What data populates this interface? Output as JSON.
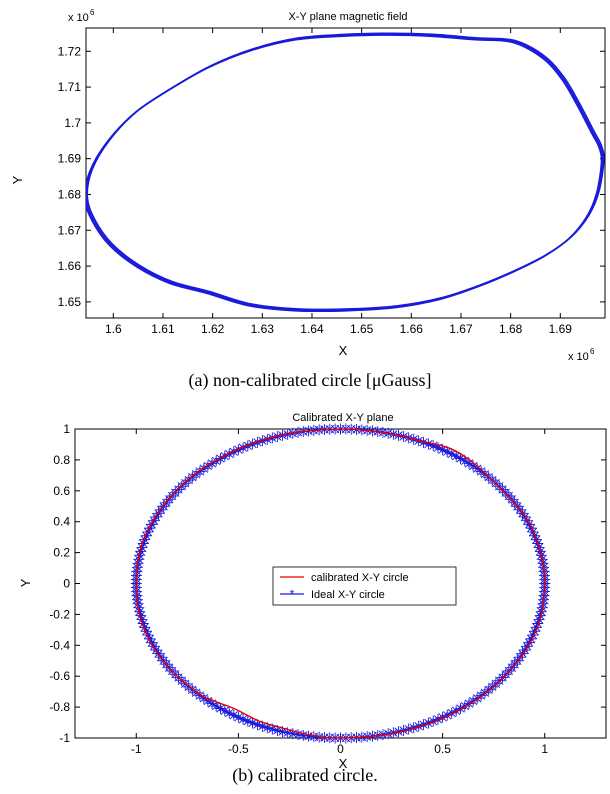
{
  "chart_data": [
    {
      "type": "line",
      "title": "X-Y plane magnetic field",
      "xlabel": "X",
      "ylabel": "Y",
      "x_multiplier": "x 10",
      "x_multiplier_exp": "6",
      "y_multiplier": "x 10",
      "y_multiplier_exp": "6",
      "xlim": [
        1.5945,
        1.699
      ],
      "ylim": [
        1.6455,
        1.7265
      ],
      "x_ticks": [
        1.6,
        1.61,
        1.62,
        1.63,
        1.64,
        1.65,
        1.66,
        1.67,
        1.68,
        1.69
      ],
      "x_tick_labels": [
        "1.6",
        "1.61",
        "1.62",
        "1.63",
        "1.64",
        "1.65",
        "1.66",
        "1.67",
        "1.68",
        "1.69"
      ],
      "y_ticks": [
        1.65,
        1.66,
        1.67,
        1.68,
        1.69,
        1.7,
        1.71,
        1.72
      ],
      "y_tick_labels": [
        "1.65",
        "1.66",
        "1.67",
        "1.68",
        "1.69",
        "1.7",
        "1.71",
        "1.72"
      ],
      "grid": false,
      "series": [
        {
          "color": "#1a1adb",
          "style": "solid",
          "closed": true,
          "x": [
            1.6985,
            1.6975,
            1.6955,
            1.692,
            1.687,
            1.681,
            1.674,
            1.666,
            1.657,
            1.647,
            1.637,
            1.6275,
            1.619,
            1.6115,
            1.605,
            1.5995,
            1.596,
            1.5945,
            1.5955,
            1.599,
            1.6045,
            1.6115,
            1.6195,
            1.628,
            1.637,
            1.6465,
            1.6555,
            1.664,
            1.673,
            1.6805,
            1.6865,
            1.6905,
            1.6935,
            1.6965,
            1.698
          ],
          "y": [
            1.6892,
            1.6805,
            1.674,
            1.668,
            1.663,
            1.6588,
            1.6547,
            1.651,
            1.6487,
            1.6478,
            1.6478,
            1.6492,
            1.6527,
            1.6555,
            1.66,
            1.666,
            1.6728,
            1.6792,
            1.6868,
            1.695,
            1.703,
            1.7095,
            1.7158,
            1.7205,
            1.7235,
            1.7245,
            1.7248,
            1.7245,
            1.7235,
            1.7228,
            1.7185,
            1.7125,
            1.7055,
            1.6975,
            1.6935
          ]
        }
      ],
      "caption": "(a)  non-calibrated  circle  [μGauss]"
    },
    {
      "type": "line",
      "title": "Calibrated X-Y plane",
      "xlabel": "X",
      "ylabel": "Y",
      "xlim": [
        -1.3,
        1.3
      ],
      "ylim": [
        -1,
        1
      ],
      "x_ticks": [
        -1,
        -0.5,
        0,
        0.5,
        1
      ],
      "x_tick_labels": [
        "-1",
        "-0.5",
        "0",
        "0.5",
        "1"
      ],
      "y_ticks": [
        -1,
        -0.8,
        -0.6,
        -0.4,
        -0.2,
        0,
        0.2,
        0.4,
        0.6,
        0.8,
        1
      ],
      "y_tick_labels": [
        "-1",
        "-0.8",
        "-0.6",
        "-0.4",
        "-0.2",
        "0",
        "0.2",
        "0.4",
        "0.6",
        "0.8",
        "1"
      ],
      "grid": false,
      "legend_position": "center",
      "series": [
        {
          "name": "calibrated X-Y circle",
          "color": "#e00000",
          "style": "solid",
          "closed": true,
          "x": [
            1.0,
            0.98,
            0.92,
            0.81,
            0.65,
            0.56,
            0.5,
            0.4,
            0.28,
            0.13,
            0.0,
            -0.26,
            -0.5,
            -0.71,
            -0.87,
            -0.97,
            -1.0,
            -0.97,
            -0.87,
            -0.71,
            -0.62,
            -0.52,
            -0.4,
            -0.3,
            -0.15,
            0.0,
            0.26,
            0.5,
            0.71,
            0.87,
            0.97,
            1.0
          ],
          "y": [
            0.0,
            0.2,
            0.4,
            0.58,
            0.78,
            0.86,
            0.89,
            0.92,
            0.96,
            0.99,
            1.0,
            0.97,
            0.87,
            0.71,
            0.5,
            0.26,
            0.0,
            -0.26,
            -0.5,
            -0.7,
            -0.76,
            -0.81,
            -0.89,
            -0.93,
            -0.98,
            -1.0,
            -0.97,
            -0.87,
            -0.71,
            -0.5,
            -0.26,
            0.0
          ]
        },
        {
          "name": "Ideal X-Y circle",
          "color": "#1a1adb",
          "marker": "star",
          "style": "solid",
          "radius": 1
        }
      ],
      "caption": "(b)  calibrated  circle."
    }
  ]
}
